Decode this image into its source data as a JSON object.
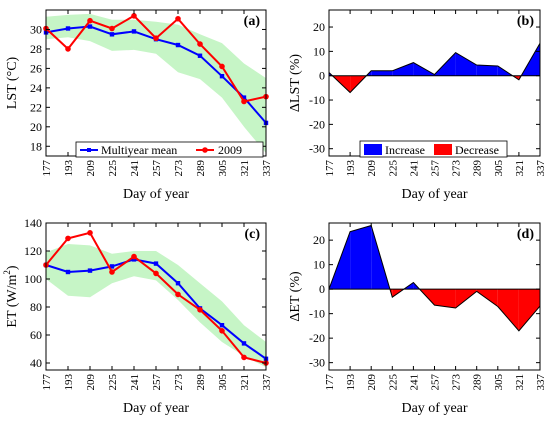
{
  "chart_data": [
    {
      "panel": "(a)",
      "type": "line",
      "xlabel": "Day of year",
      "ylabel": "LST (°C)",
      "ylim": [
        17,
        32
      ],
      "yticks": [
        18,
        20,
        22,
        24,
        26,
        28,
        30
      ],
      "x": [
        177,
        193,
        209,
        225,
        241,
        257,
        273,
        289,
        305,
        321,
        337
      ],
      "band": {
        "color": "#c6f5c6",
        "upper": [
          31.3,
          31.5,
          31.6,
          31.0,
          31.0,
          30.8,
          30.5,
          29.5,
          28.6,
          26.5,
          25.0
        ],
        "lower": [
          29.0,
          29.2,
          28.8,
          27.8,
          27.9,
          27.5,
          25.6,
          24.9,
          23.0,
          20.0,
          17.3
        ]
      },
      "series": [
        {
          "name": "Multiyear mean",
          "color": "#0000ff",
          "marker": "square",
          "values": [
            29.7,
            30.1,
            30.3,
            29.5,
            29.8,
            29.0,
            28.4,
            27.3,
            25.2,
            23.0,
            20.4
          ]
        },
        {
          "name": "2009",
          "color": "#ff0000",
          "marker": "circle",
          "values": [
            30.1,
            28.0,
            30.9,
            30.1,
            31.4,
            29.1,
            31.1,
            28.5,
            26.2,
            22.6,
            23.1
          ]
        }
      ],
      "legend": "bottom-center"
    },
    {
      "panel": "(b)",
      "type": "area",
      "xlabel": "Day of year",
      "ylabel": "ΔLST (%)",
      "ylim": [
        -33,
        27
      ],
      "yticks": [
        -30,
        -20,
        -10,
        0,
        10,
        20
      ],
      "x": [
        177,
        193,
        209,
        225,
        241,
        257,
        273,
        289,
        305,
        321,
        337
      ],
      "values": [
        1.3,
        -6.9,
        2.0,
        2.0,
        5.4,
        0.5,
        9.5,
        4.4,
        4.0,
        -1.7,
        13.3
      ],
      "legend_items": [
        {
          "name": "Increase",
          "color": "#0000ff"
        },
        {
          "name": "Decrease",
          "color": "#ff0000"
        }
      ],
      "legend": "bottom-center"
    },
    {
      "panel": "(c)",
      "type": "line",
      "xlabel": "Day of year",
      "ylabel_main": "ET (W/m",
      "ylabel_sup": "2",
      "ylabel_end": ")",
      "ylim": [
        35,
        140
      ],
      "yticks": [
        40,
        60,
        80,
        100,
        120,
        140
      ],
      "x": [
        177,
        193,
        209,
        225,
        241,
        257,
        273,
        289,
        305,
        321,
        337
      ],
      "band": {
        "color": "#c6f5c6",
        "upper": [
          119,
          125,
          124,
          118,
          120,
          120,
          110,
          97,
          84,
          67,
          55
        ],
        "lower": [
          100,
          88,
          87,
          97,
          102,
          99,
          85,
          69,
          55,
          45,
          37
        ]
      },
      "series": [
        {
          "name": "Multiyear mean",
          "color": "#0000ff",
          "marker": "square",
          "values": [
            110,
            105,
            106,
            109,
            114,
            111,
            97,
            79,
            67,
            54,
            43
          ]
        },
        {
          "name": "2009",
          "color": "#ff0000",
          "marker": "circle",
          "values": [
            110,
            129,
            133,
            105,
            116,
            104,
            89,
            78,
            63,
            44,
            40
          ]
        }
      ]
    },
    {
      "panel": "(d)",
      "type": "area",
      "xlabel": "Day of year",
      "ylabel": "ΔET (%)",
      "ylim": [
        -33,
        27
      ],
      "yticks": [
        -30,
        -20,
        -10,
        0,
        10,
        20
      ],
      "x": [
        177,
        193,
        209,
        225,
        241,
        257,
        273,
        289,
        305,
        321,
        337
      ],
      "values": [
        0,
        23.5,
        26.0,
        -3.3,
        2.7,
        -6.5,
        -7.7,
        -0.9,
        -7.1,
        -17.0,
        -6.9
      ]
    }
  ]
}
